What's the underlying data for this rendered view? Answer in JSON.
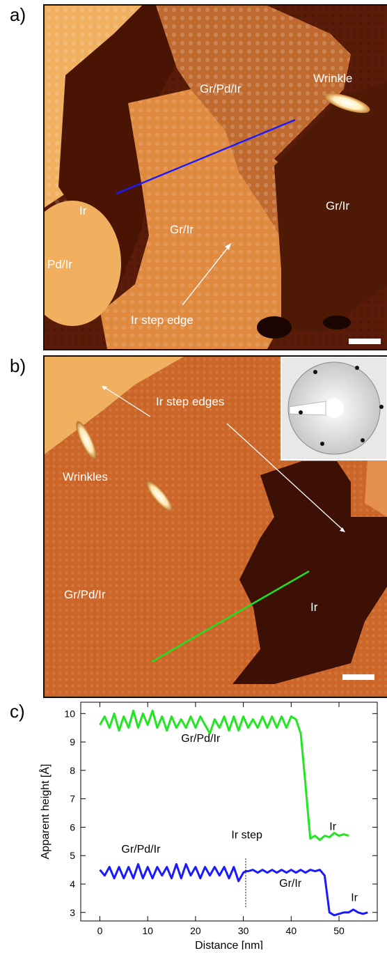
{
  "panels": {
    "a": {
      "letter": "a)",
      "labels": {
        "gr_pd_ir": "Gr/Pd/Ir",
        "wrinkle": "Wrinkle",
        "ir": "Ir",
        "gr_ir_center": "Gr/Ir",
        "gr_ir_right": "Gr/Ir",
        "pd_ir": "Pd/Ir",
        "ir_step_edge": "Ir step edge"
      },
      "profile_line_color": "#1a1aff"
    },
    "b": {
      "letter": "b)",
      "labels": {
        "ir_step_edges": "Ir step edges",
        "wrinkles": "Wrinkles",
        "gr_pd_ir": "Gr/Pd/Ir",
        "ir": "Ir"
      },
      "profile_line_color": "#22dd22"
    },
    "c": {
      "letter": "c)"
    }
  },
  "chart_data": {
    "type": "line",
    "xlabel": "Distance [nm]",
    "ylabel": "Apparent height [Å]",
    "xlim": [
      -4,
      58
    ],
    "ylim": [
      2.7,
      10.4
    ],
    "xticks": [
      0,
      10,
      20,
      30,
      40,
      50
    ],
    "yticks": [
      3,
      4,
      5,
      6,
      7,
      8,
      9,
      10
    ],
    "grid": false,
    "series": [
      {
        "color": "#22e622",
        "x": [
          0,
          1,
          2,
          3,
          4,
          5,
          6,
          7,
          8,
          9,
          10,
          11,
          12,
          13,
          14,
          15,
          16,
          17,
          18,
          19,
          20,
          21,
          22,
          23,
          24,
          25,
          26,
          27,
          28,
          29,
          30,
          31,
          32,
          33,
          34,
          35,
          36,
          37,
          38,
          39,
          40,
          41,
          42,
          43,
          43.5,
          44,
          45,
          46,
          47,
          48,
          49,
          50,
          51,
          52
        ],
        "y": [
          9.6,
          9.9,
          9.5,
          10.0,
          9.4,
          9.9,
          9.5,
          10.1,
          9.5,
          10.0,
          9.6,
          10.1,
          9.5,
          9.9,
          9.4,
          9.9,
          9.5,
          9.8,
          9.5,
          9.9,
          9.5,
          9.9,
          9.6,
          9.3,
          9.8,
          9.5,
          9.9,
          9.4,
          9.9,
          9.4,
          9.9,
          9.5,
          9.8,
          9.5,
          9.9,
          9.5,
          9.9,
          9.5,
          9.9,
          9.5,
          9.9,
          9.8,
          9.3,
          7.5,
          6.5,
          5.6,
          5.7,
          5.55,
          5.7,
          5.65,
          5.8,
          5.7,
          5.75,
          5.7
        ]
      },
      {
        "color": "#1a1aff",
        "x": [
          0,
          1,
          2,
          3,
          4,
          5,
          6,
          7,
          8,
          9,
          10,
          11,
          12,
          13,
          14,
          15,
          16,
          17,
          18,
          19,
          20,
          21,
          22,
          23,
          24,
          25,
          26,
          27,
          28,
          29,
          30,
          30.5,
          31,
          32,
          33,
          34,
          35,
          36,
          37,
          38,
          39,
          40,
          41,
          42,
          43,
          44,
          45,
          46,
          47,
          48,
          49,
          50,
          51,
          52,
          53,
          54,
          55,
          56
        ],
        "y": [
          4.5,
          4.3,
          4.6,
          4.2,
          4.6,
          4.2,
          4.6,
          4.2,
          4.7,
          4.2,
          4.6,
          4.2,
          4.6,
          4.3,
          4.6,
          4.2,
          4.7,
          4.2,
          4.7,
          4.3,
          4.6,
          4.2,
          4.6,
          4.3,
          4.6,
          4.3,
          4.6,
          4.2,
          4.6,
          4.1,
          4.4,
          4.45,
          4.45,
          4.5,
          4.4,
          4.5,
          4.4,
          4.5,
          4.4,
          4.5,
          4.4,
          4.5,
          4.4,
          4.5,
          4.4,
          4.5,
          4.45,
          4.5,
          4.3,
          3.0,
          2.9,
          2.95,
          3.0,
          3.0,
          3.1,
          3.0,
          2.95,
          3.0
        ]
      }
    ],
    "annotations": {
      "gr_pd_ir_top": "Gr/Pd/Ir",
      "ir_top": "Ir",
      "gr_pd_ir_bottom": "Gr/Pd/Ir",
      "ir_step": "Ir step",
      "gr_ir": "Gr/Ir",
      "ir_bottom": "Ir"
    },
    "ir_step_x": 30.5
  }
}
